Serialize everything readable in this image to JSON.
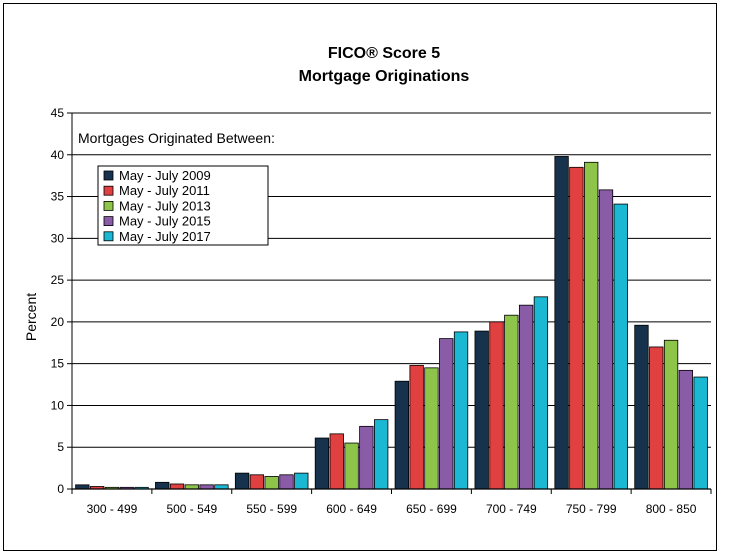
{
  "chart_data": {
    "type": "bar",
    "title": "FICO® Score 5",
    "subtitle": "Mortgage Originations",
    "ylabel": "Percent",
    "xlabel": "",
    "annotation": "Mortgages Originated Between:",
    "ylim": [
      0,
      45
    ],
    "yticks": [
      0,
      5,
      10,
      15,
      20,
      25,
      30,
      35,
      40,
      45
    ],
    "grid": true,
    "legend_position": "top-left",
    "categories": [
      "300 - 499",
      "500 - 549",
      "550 - 599",
      "600 - 649",
      "650 - 699",
      "700 - 749",
      "750 - 799",
      "800 - 850"
    ],
    "series": [
      {
        "name": "May - July 2009",
        "color": "#17324d",
        "values": [
          0.5,
          0.8,
          1.9,
          6.1,
          12.9,
          18.9,
          39.8,
          19.6
        ]
      },
      {
        "name": "May - July 2011",
        "color": "#e04040",
        "values": [
          0.3,
          0.6,
          1.7,
          6.6,
          14.8,
          20.0,
          38.5,
          17.0
        ]
      },
      {
        "name": "May - July 2013",
        "color": "#8fc44a",
        "values": [
          0.2,
          0.5,
          1.5,
          5.5,
          14.5,
          20.8,
          39.1,
          17.8
        ]
      },
      {
        "name": "May - July 2015",
        "color": "#8a5ca8",
        "values": [
          0.2,
          0.5,
          1.7,
          7.5,
          18.0,
          22.0,
          35.8,
          14.2
        ]
      },
      {
        "name": "May - July 2017",
        "color": "#1bb8d3",
        "values": [
          0.2,
          0.5,
          1.9,
          8.3,
          18.8,
          23.0,
          34.1,
          13.4
        ]
      }
    ]
  }
}
